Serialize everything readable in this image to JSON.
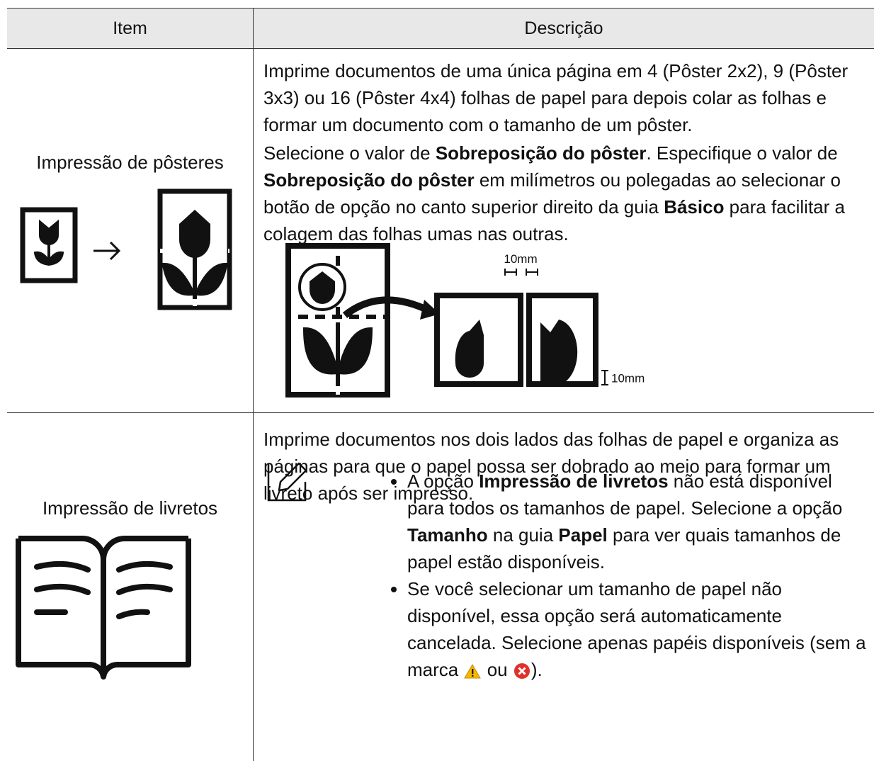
{
  "table": {
    "headers": [
      "Item",
      "Descrição"
    ],
    "rows": [
      {
        "item": "Impressão de pôsteres",
        "description": [
          [
            {
              "text": "Imprime documentos de uma única página em 4 (Pôster 2x2), 9 (Pôster 3x3) ou 16 (Pôster 4x4) folhas de papel para depois colar as folhas e formar um documento com o tamanho de um pôster."
            }
          ],
          [
            {
              "text": "Selecione o valor de "
            },
            {
              "text": "Sobreposição do pôster",
              "bold": true
            },
            {
              "text": ". Especifique o valor de "
            },
            {
              "text": "Sobreposição do pôster",
              "bold": true
            },
            {
              "text": " em milímetros ou polegadas ao selecionar o botão de opção no canto superior direito da guia "
            },
            {
              "text": "Básico",
              "bold": true
            },
            {
              "text": " para facilitar a colagem das folhas umas nas outras."
            }
          ]
        ],
        "figure_labels": [
          "10mm",
          "10mm"
        ]
      },
      {
        "item": "Impressão de livretos",
        "description": [
          [
            {
              "text": "Imprime documentos nos dois lados das folhas de papel e organiza as páginas para que o papel possa ser dobrado ao meio para formar um livreto após ser impresso."
            }
          ]
        ],
        "notes": [
          [
            {
              "text": "A opção "
            },
            {
              "text": "Impressão de livretos",
              "bold": true
            },
            {
              "text": " não está disponível para todos os tamanhos de papel. Selecione a opção "
            },
            {
              "text": "Tamanho",
              "bold": true
            },
            {
              "text": " na guia "
            },
            {
              "text": "Papel",
              "bold": true
            },
            {
              "text": " para ver quais tamanhos de papel estão disponíveis."
            }
          ],
          [
            {
              "text": "Se você selecionar um tamanho de papel não disponível, essa opção será automaticamente cancelada. Selecione apenas papéis disponíveis (sem a marca "
            },
            {
              "text": " ou "
            },
            {
              "text": ")."
            }
          ]
        ]
      }
    ]
  }
}
